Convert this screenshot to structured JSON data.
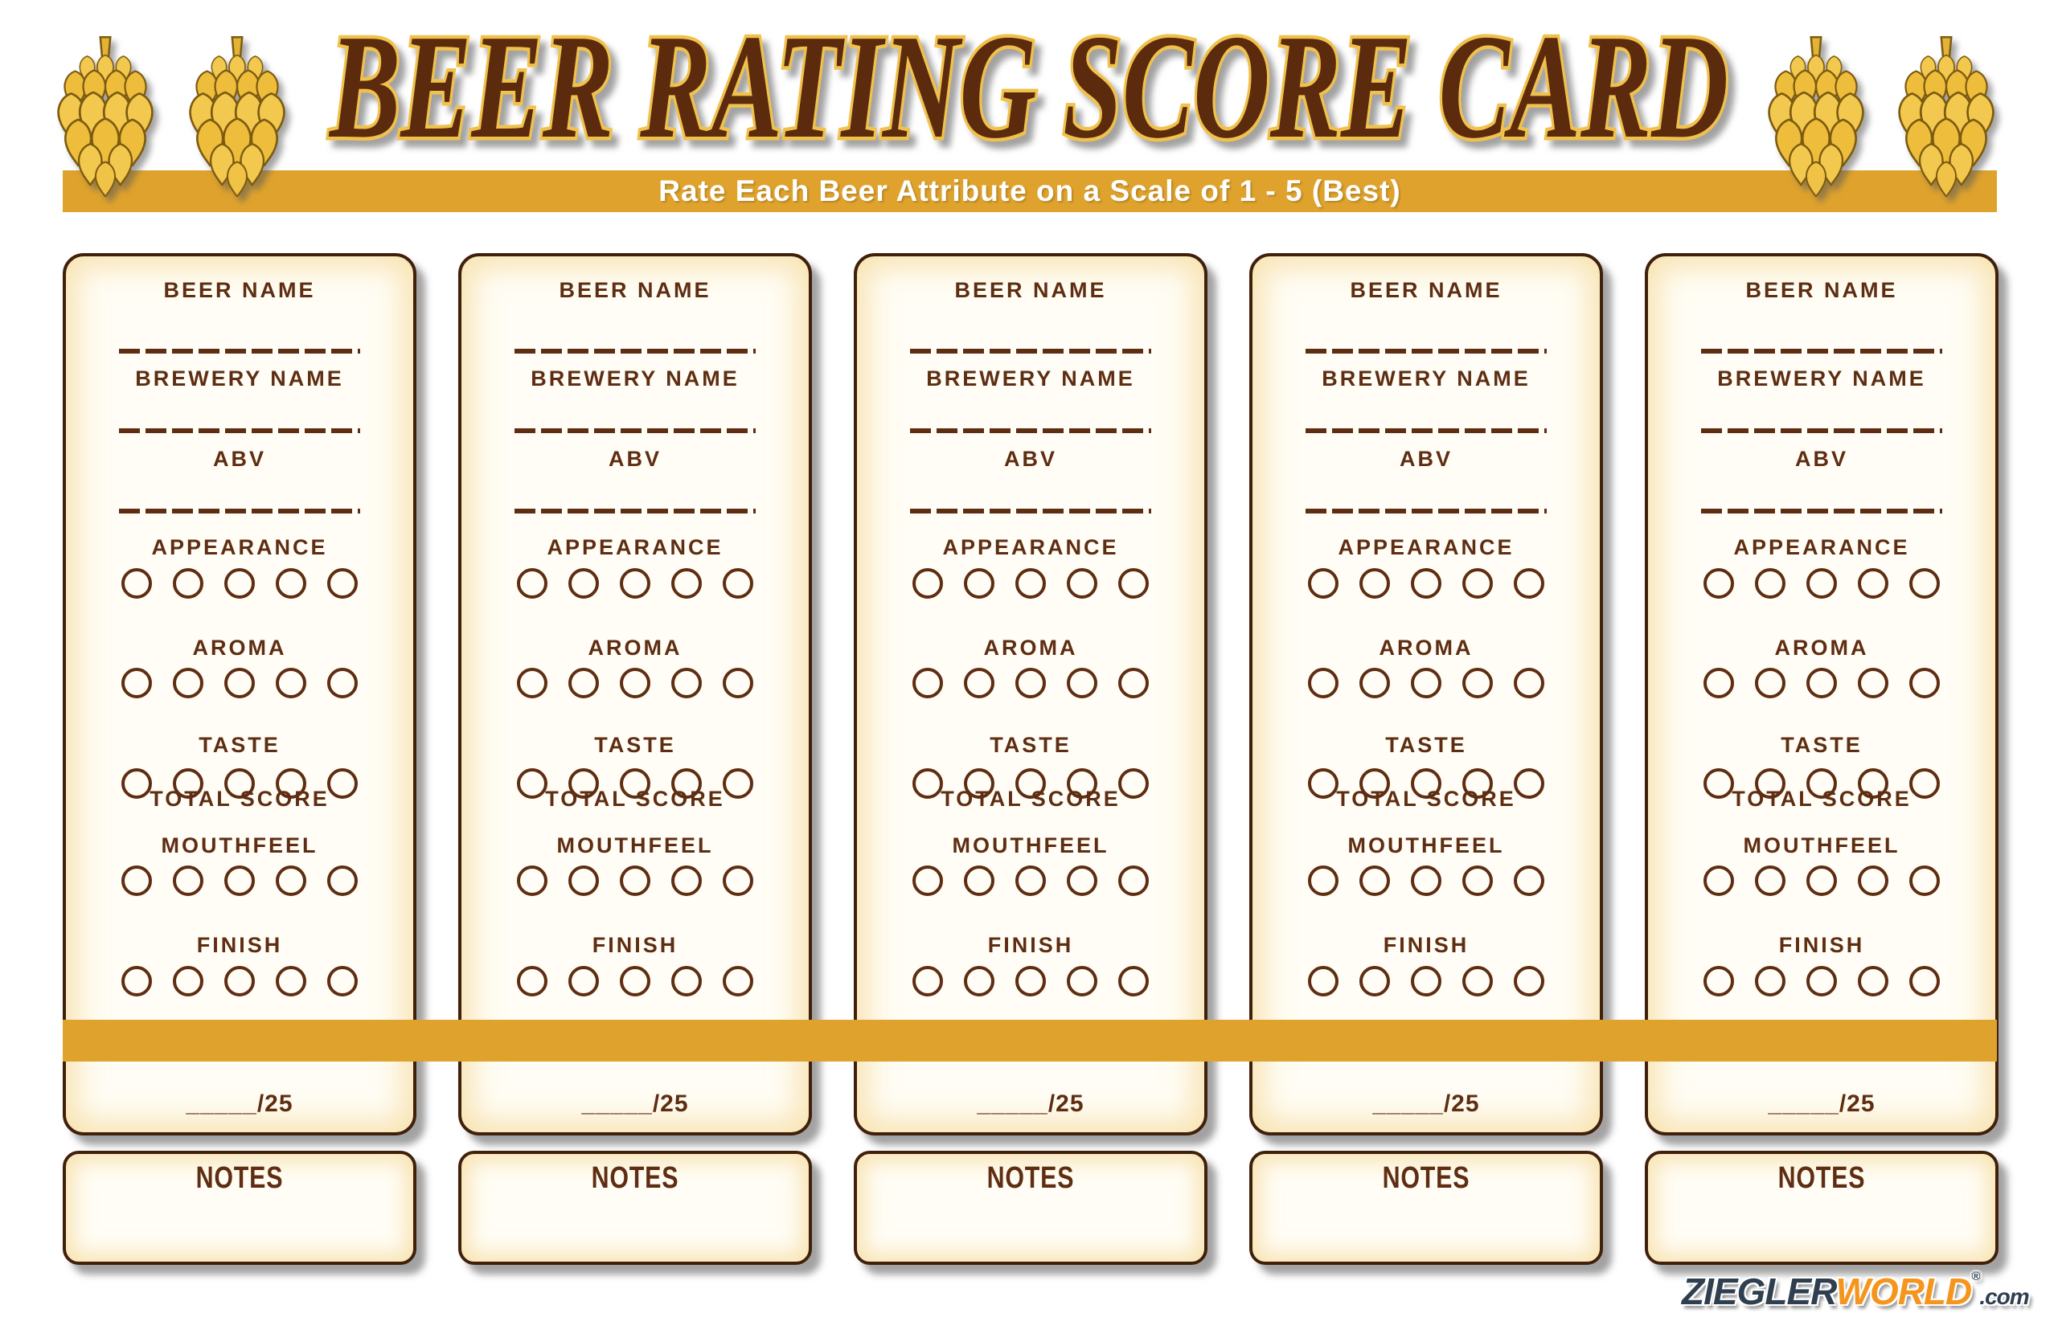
{
  "header": {
    "title": "BEER RATING SCORE CARD",
    "subtitle": "Rate Each Beer Attribute on a Scale of 1 - 5 (Best)"
  },
  "card": {
    "fields": [
      {
        "label": "BEER NAME"
      },
      {
        "label": "BREWERY NAME"
      },
      {
        "label": "ABV"
      }
    ],
    "attributes": [
      {
        "label": "APPEARANCE"
      },
      {
        "label": "AROMA"
      },
      {
        "label": "TASTE"
      },
      {
        "label": "MOUTHFEEL"
      },
      {
        "label": "FINISH"
      }
    ],
    "rating_circles_per_attribute": 5,
    "total_label": "TOTAL SCORE",
    "total_value": "_____/25",
    "notes_label": "NOTES"
  },
  "cards_count": 5,
  "brand": {
    "name_primary": "ZIEGLER",
    "name_secondary": "WORLD",
    "registered_mark": "®",
    "domain_suffix": ".com"
  },
  "colors": {
    "gold_band": "#dfa32d",
    "text_brown": "#5e2d12",
    "card_border": "#40200a",
    "hop_gold": "#f2c84d",
    "title_fill": "#5b2910",
    "title_outline": "#f0c14b",
    "banner_text": "#ffffff",
    "brand_navy": "#2f3f50",
    "brand_orange": "#f6951d"
  }
}
